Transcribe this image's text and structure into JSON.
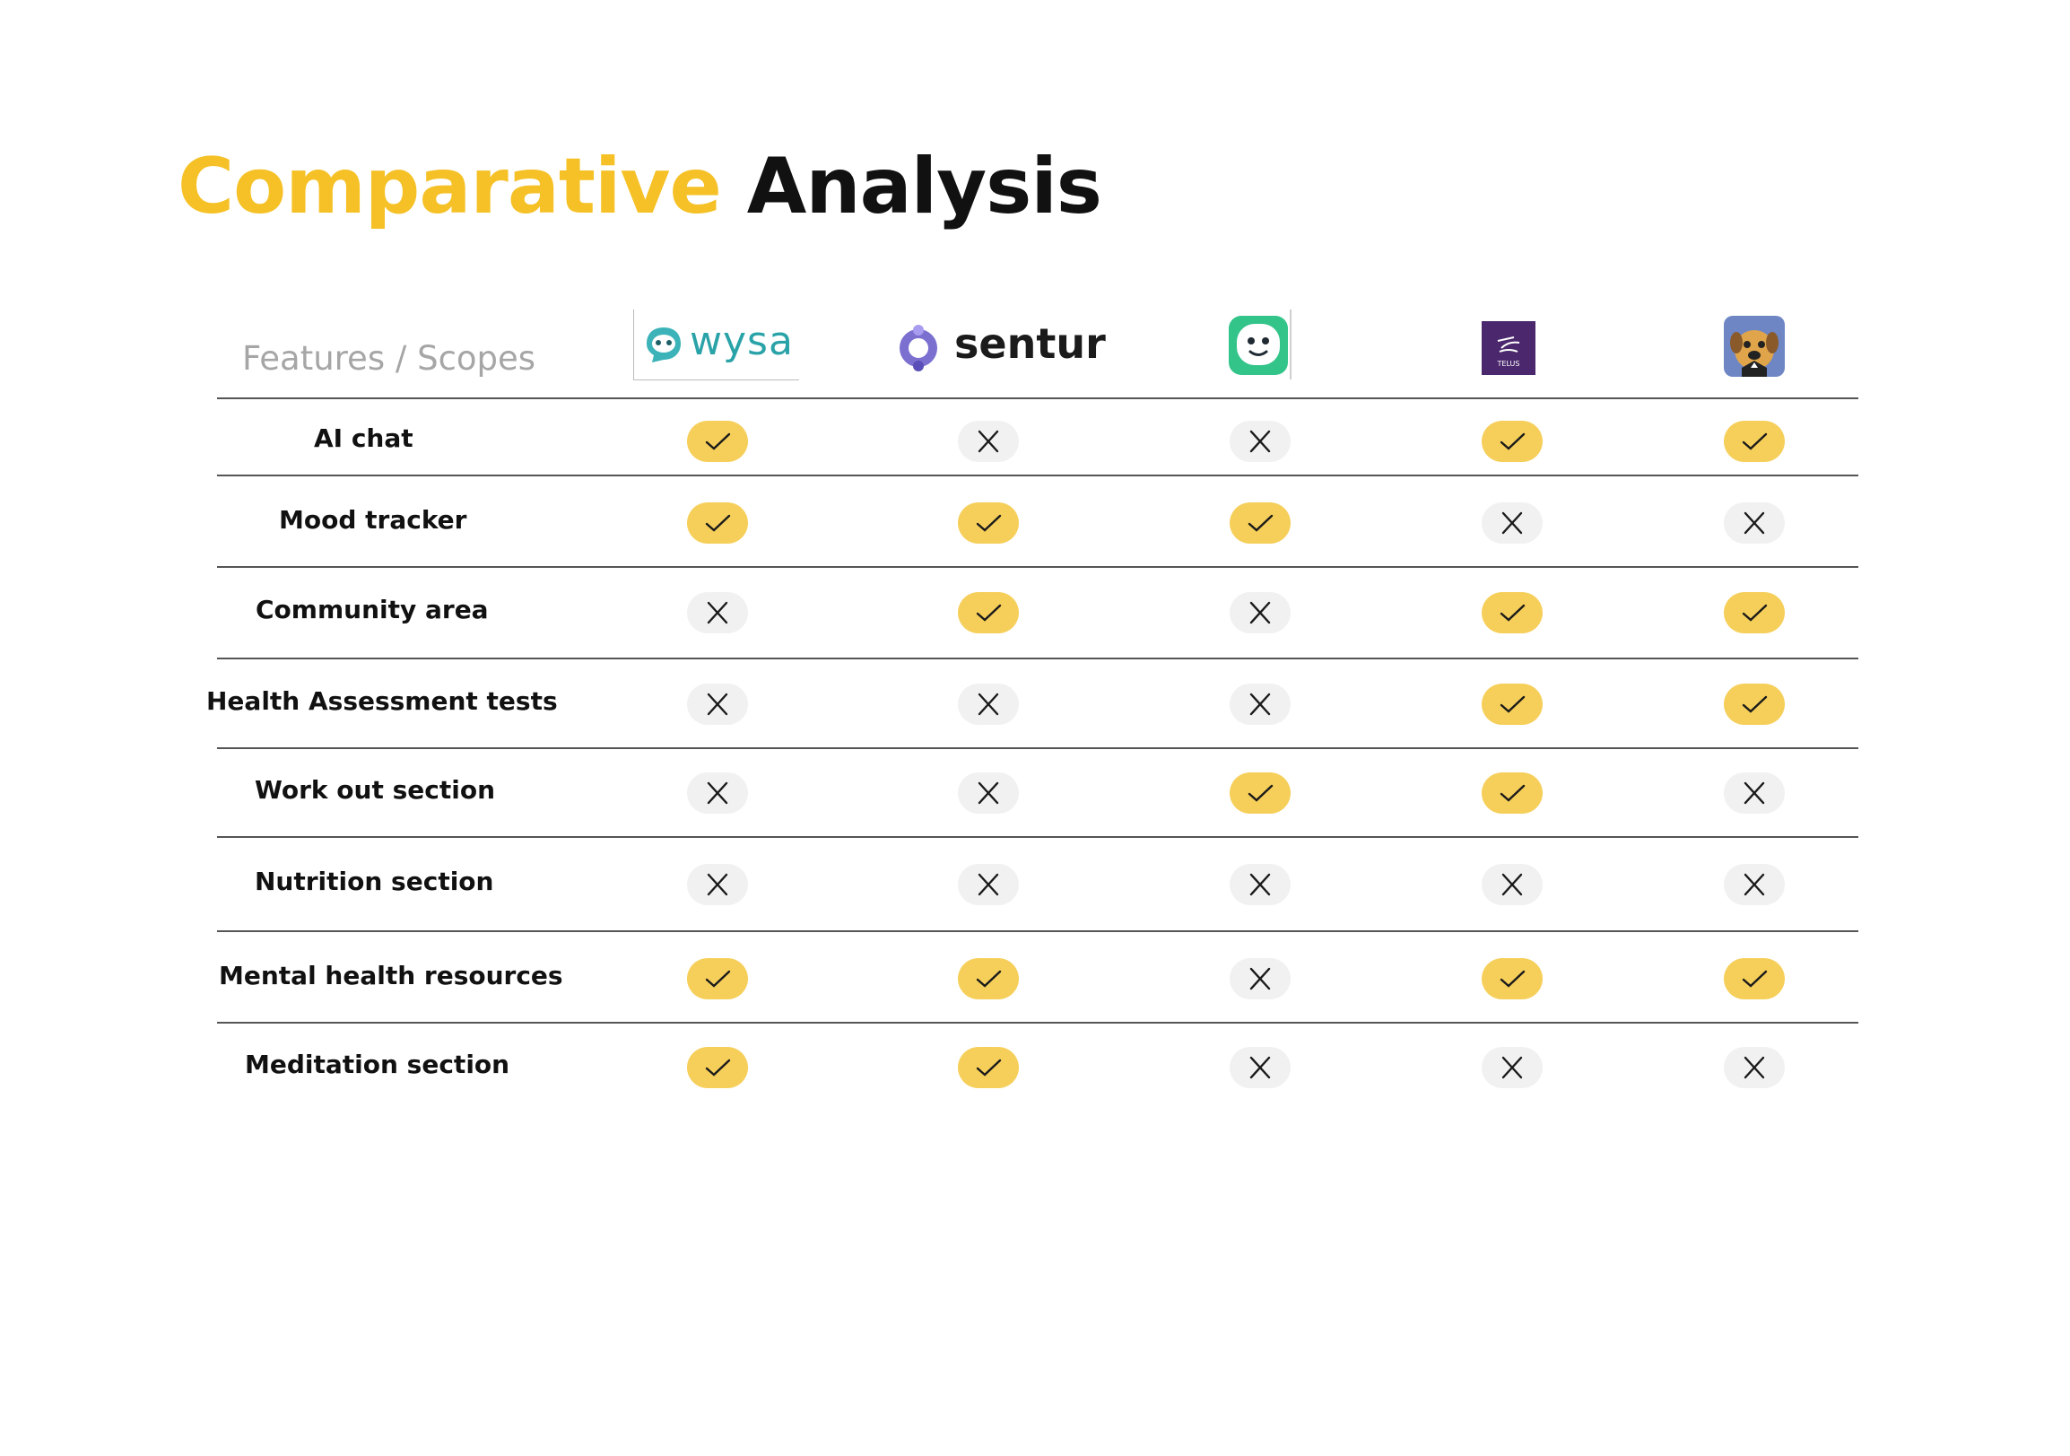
{
  "title": {
    "word1": "Comparative",
    "word2": "Analysis"
  },
  "table": {
    "header": "Features / Scopes",
    "apps": [
      {
        "name": "wysa",
        "logo_text": "wysa"
      },
      {
        "name": "sentur",
        "logo_text": "sentur"
      },
      {
        "name": "green-face-app",
        "logo_text": ""
      },
      {
        "name": "telus",
        "logo_text": "TELUS"
      },
      {
        "name": "dog-app",
        "logo_text": ""
      }
    ],
    "rows": [
      {
        "label": "AI chat",
        "values": [
          true,
          false,
          false,
          true,
          true
        ]
      },
      {
        "label": "Mood tracker",
        "values": [
          true,
          true,
          true,
          false,
          false
        ]
      },
      {
        "label": "Community area",
        "values": [
          false,
          true,
          false,
          true,
          true
        ]
      },
      {
        "label": "Health Assessment tests",
        "values": [
          false,
          false,
          false,
          true,
          true
        ]
      },
      {
        "label": "Work out section",
        "values": [
          false,
          false,
          true,
          true,
          false
        ]
      },
      {
        "label": "Nutrition section",
        "values": [
          false,
          false,
          false,
          false,
          false
        ]
      },
      {
        "label": "Mental health resources",
        "values": [
          true,
          true,
          false,
          true,
          true
        ]
      },
      {
        "label": "Meditation section",
        "values": [
          true,
          true,
          false,
          false,
          false
        ]
      }
    ]
  },
  "colors": {
    "accent_yellow": "#F5C126",
    "pill_yes": "#F6CF5A",
    "pill_no": "#f1f1f1",
    "text_dark": "#111111",
    "header_grey": "#a6a6a6"
  }
}
